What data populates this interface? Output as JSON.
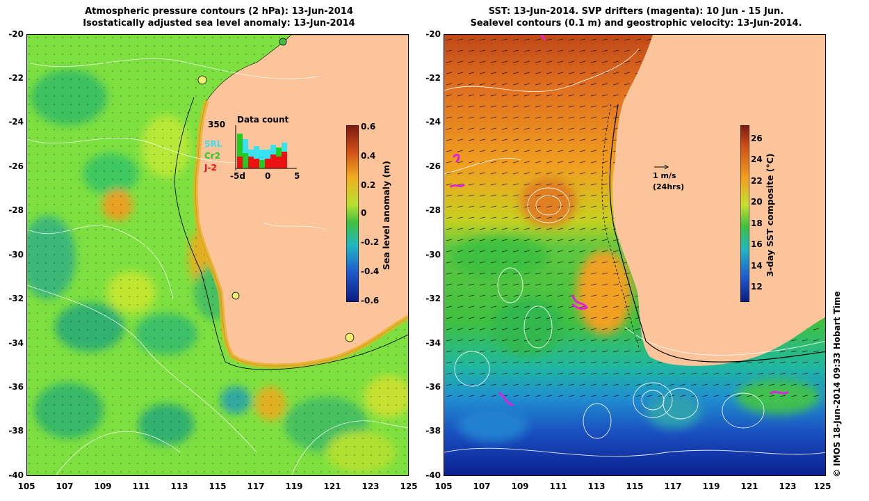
{
  "left_panel": {
    "title_line1": "Atmospheric pressure contours (2 hPa): 13-Jun-2014",
    "title_line2": "Isostatically adjusted sea level anomaly: 13-Jun-2014",
    "colorbar": {
      "label": "Sea level anomaly (m)",
      "ticks": [
        "0.6",
        "0.4",
        "0.2",
        "0",
        "-0.2",
        "-0.4",
        "-0.6"
      ]
    },
    "inset": {
      "title": "Data count",
      "ymax": "350",
      "series": [
        {
          "name": "SRL",
          "color": "#38e0f0"
        },
        {
          "name": "Cr2",
          "color": "#22cc22"
        },
        {
          "name": "J-2",
          "color": "#ee1111"
        }
      ],
      "xticks": [
        "-5d",
        "0",
        "5"
      ]
    }
  },
  "right_panel": {
    "title_line1": "SST: 13-Jun-2014. SVP drifters (magenta): 10 Jun - 15 Jun.",
    "title_line2": "Sealevel contours (0.1 m) and geostrophic velocity: 13-Jun-2014.",
    "colorbar": {
      "label": "3-day SST composite (°C)",
      "ticks": [
        "26",
        "24",
        "22",
        "20",
        "18",
        "16",
        "14",
        "12"
      ]
    },
    "velocity_scale": {
      "line1": "1 m/s",
      "line2": "(24hrs)"
    }
  },
  "axes": {
    "yticks": [
      "-20",
      "-22",
      "-24",
      "-26",
      "-28",
      "-30",
      "-32",
      "-34",
      "-36",
      "-38",
      "-40"
    ],
    "xticks": [
      "105",
      "107",
      "109",
      "111",
      "113",
      "115",
      "117",
      "119",
      "121",
      "123",
      "125"
    ]
  },
  "credit": "© IMOS 18-Jun-2014 09:33 Hobart Time",
  "colors": {
    "land": "#fbc49a",
    "sla_green": "#5ed040",
    "sla_light": "#9ee83c",
    "sst_warm": "#e07020",
    "sst_mid": "#40c040",
    "sst_cold": "#1a50c0",
    "drifter": "#e020e0"
  }
}
